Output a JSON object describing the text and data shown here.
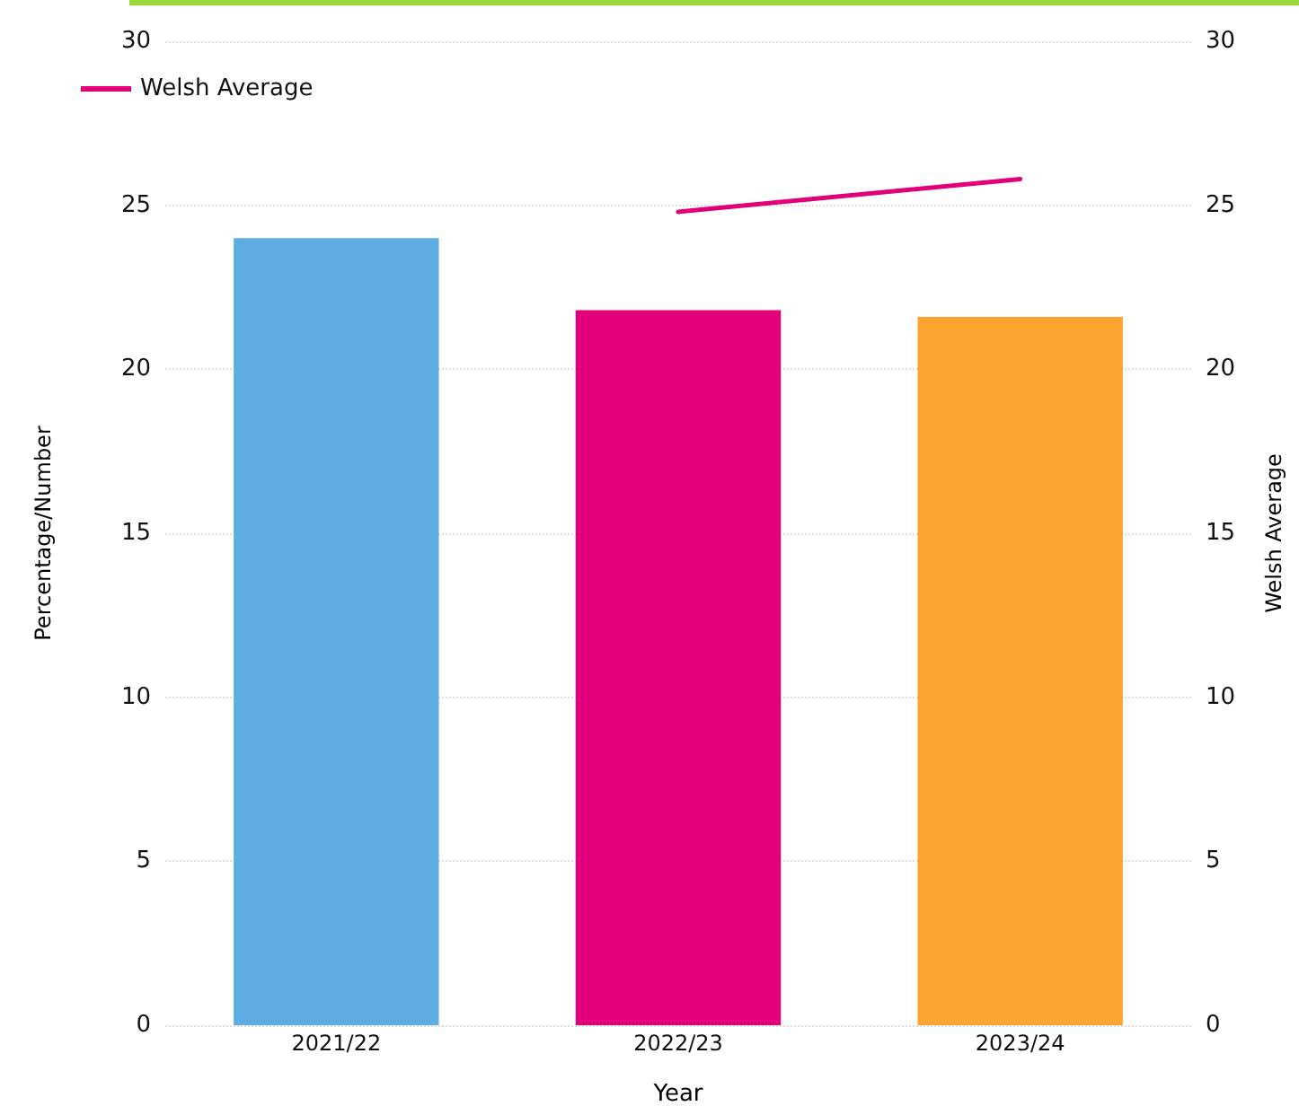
{
  "chart_data": {
    "type": "bar",
    "xlabel": "Year",
    "ylabel": "Percentage/Number",
    "y2label": "Welsh Average",
    "categories": [
      "2021/22",
      "2022/23",
      "2023/24"
    ],
    "series": [
      {
        "values": [
          24,
          21.8,
          21.6
        ],
        "colors": [
          "#5dade2",
          "#e2007a",
          "#fda42f"
        ]
      },
      {
        "type": "line",
        "name": "Welsh Average",
        "axis": "y2",
        "color": "#e2007a",
        "line_style": "solid",
        "marker": "none",
        "values": [
          null,
          24.8,
          25.8
        ]
      }
    ],
    "ylim": [
      0,
      30
    ],
    "yticks": [
      0,
      5,
      10,
      15,
      20,
      25,
      30
    ],
    "y2lim": [
      0,
      30
    ],
    "y2ticks": [
      0,
      5,
      10,
      15,
      20,
      25,
      30
    ],
    "grid": "y",
    "legend": "top left"
  }
}
